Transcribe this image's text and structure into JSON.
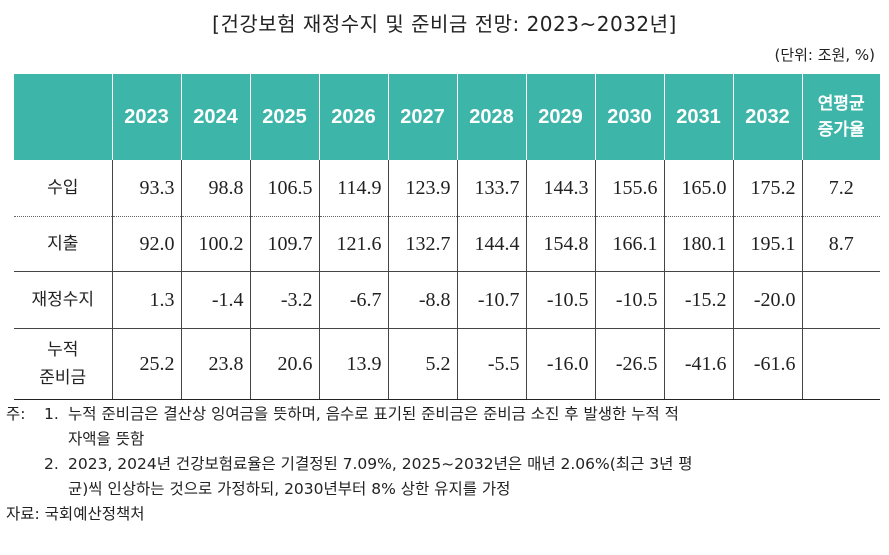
{
  "title": "[건강보험 재정수지 및 준비금 전망: 2023~2032년]",
  "unit": "(단위: 조원, %)",
  "table": {
    "columns": [
      "2023",
      "2024",
      "2025",
      "2026",
      "2027",
      "2028",
      "2029",
      "2030",
      "2031",
      "2032"
    ],
    "last_col_line1": "연평균",
    "last_col_line2": "증가율",
    "rows": [
      {
        "label_line1": "수입",
        "label_line2": "",
        "values": [
          "93.3",
          "98.8",
          "106.5",
          "114.9",
          "123.9",
          "133.7",
          "144.3",
          "155.6",
          "165.0",
          "175.2"
        ],
        "rate": "7.2"
      },
      {
        "label_line1": "지출",
        "label_line2": "",
        "values": [
          "92.0",
          "100.2",
          "109.7",
          "121.6",
          "132.7",
          "144.4",
          "154.8",
          "166.1",
          "180.1",
          "195.1"
        ],
        "rate": "8.7"
      },
      {
        "label_line1": "재정수지",
        "label_line2": "",
        "values": [
          "1.3",
          "-1.4",
          "-3.2",
          "-6.7",
          "-8.8",
          "-10.7",
          "-10.5",
          "-10.5",
          "-15.2",
          "-20.0"
        ],
        "rate": ""
      },
      {
        "label_line1": "누적",
        "label_line2": "준비금",
        "values": [
          "25.2",
          "23.8",
          "20.6",
          "13.9",
          "5.2",
          "-5.5",
          "-16.0",
          "-26.5",
          "-41.6",
          "-61.6"
        ],
        "rate": ""
      }
    ]
  },
  "notes": {
    "label": "주:",
    "items": [
      {
        "num": "1.",
        "line1": "누적 준비금은 결산상 잉여금을 뜻하며, 음수로 표기된 준비금은 준비금 소진 후 발생한 누적 적",
        "line2": "자액을 뜻함"
      },
      {
        "num": "2.",
        "line1": "2023, 2024년 건강보험료율은 기결정된 7.09%, 2025~2032년은 매년 2.06%(최근 3년 평",
        "line2": "균)씩 인상하는 것으로 가정하되, 2030년부터 8% 상한 유지를 가정"
      }
    ]
  },
  "source": "자료: 국회예산정책처"
}
